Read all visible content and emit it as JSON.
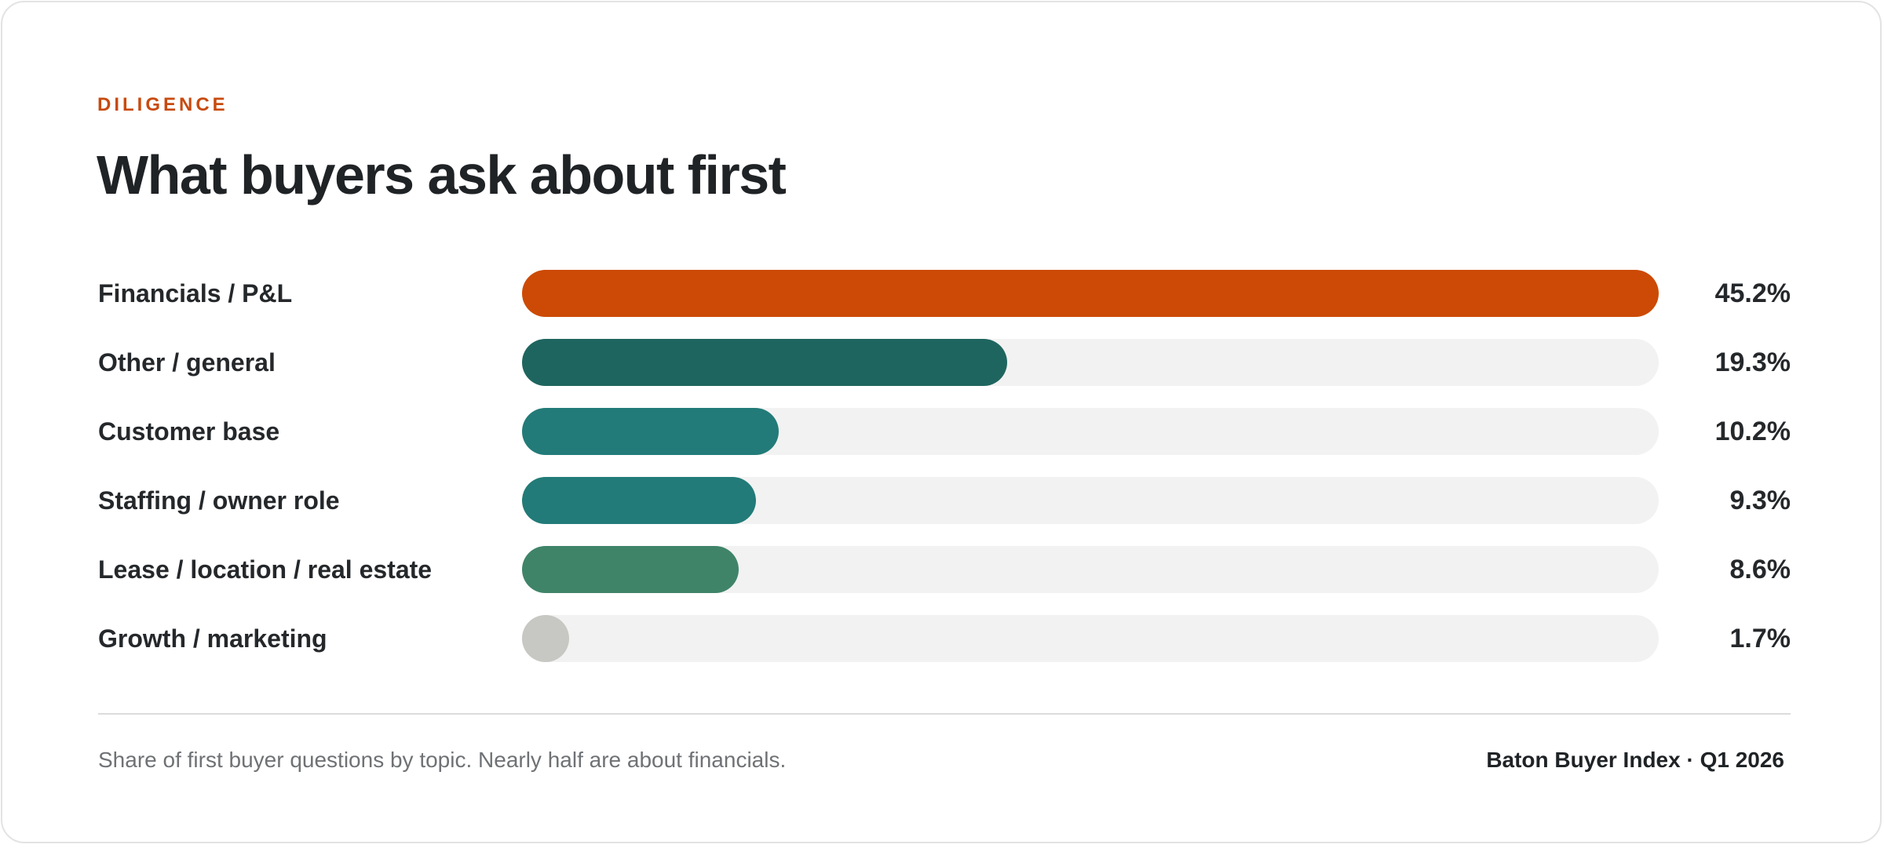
{
  "header": {
    "eyebrow": "DILIGENCE",
    "title": "What buyers ask about first"
  },
  "chart_data": {
    "type": "bar",
    "orientation": "horizontal",
    "title": "What buyers ask about first",
    "xlabel": "",
    "ylabel": "",
    "grid": false,
    "xlim": [
      0,
      45.2
    ],
    "categories": [
      "Financials / P&L",
      "Other / general",
      "Customer base",
      "Staffing / owner role",
      "Lease / location / real estate",
      "Growth / marketing"
    ],
    "values": [
      45.2,
      19.3,
      10.2,
      9.3,
      8.6,
      1.7
    ],
    "value_labels": [
      "45.2%",
      "19.3%",
      "10.2%",
      "9.3%",
      "8.6%",
      "1.7%"
    ],
    "colors": [
      "#cc4a05",
      "#1f655f",
      "#227b78",
      "#227b78",
      "#3f8469",
      "#c7c7c3"
    ],
    "track_color": "#f2f2f2"
  },
  "footer": {
    "caption": "Share of first buyer questions by topic. Nearly half are about financials.",
    "source": "Baton Buyer Index · Q1 2026"
  }
}
